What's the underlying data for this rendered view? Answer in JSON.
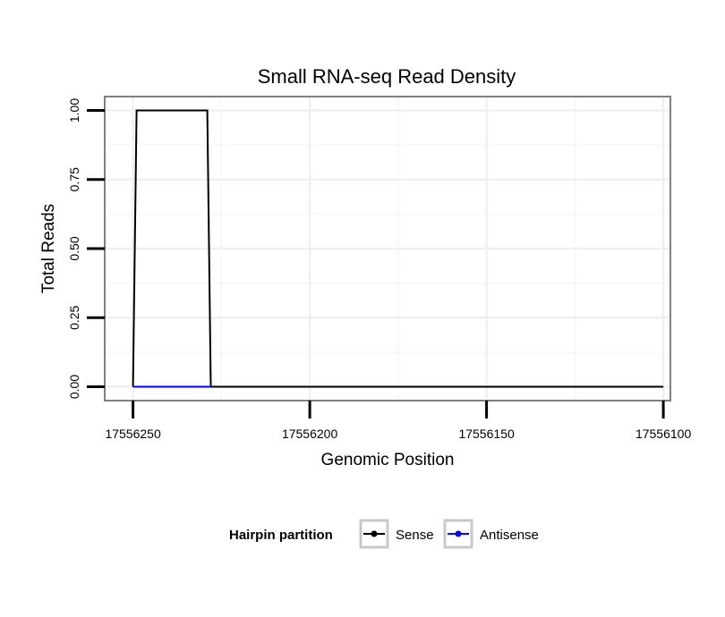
{
  "chart_data": {
    "type": "line",
    "title": "Small RNA-seq Read Density",
    "xlabel": "Genomic Position",
    "ylabel": "Total Reads",
    "xlim": [
      17556258,
      17556098
    ],
    "ylim": [
      -0.05,
      1.05
    ],
    "x_reversed": true,
    "xticks": [
      17556250,
      17556200,
      17556150,
      17556100
    ],
    "xtick_labels": [
      "17556250",
      "17556200",
      "17556150",
      "17556100"
    ],
    "yticks": [
      0,
      0.25,
      0.5,
      0.75,
      1
    ],
    "ytick_labels": [
      "0.00",
      "0.25",
      "0.50",
      "0.75",
      "1.00"
    ],
    "grid": true,
    "series": [
      {
        "name": "Sense",
        "color": "#000000",
        "x": [
          17556250,
          17556249,
          17556229,
          17556228,
          17556100
        ],
        "y": [
          0,
          1,
          1,
          0,
          0
        ]
      },
      {
        "name": "Antisense",
        "color": "#0000ff",
        "x": [
          17556250,
          17556228
        ],
        "y": [
          0,
          0
        ]
      }
    ],
    "legend": {
      "title": "Hairpin partition",
      "position": "bottom",
      "entries": [
        "Sense",
        "Antisense"
      ]
    }
  }
}
